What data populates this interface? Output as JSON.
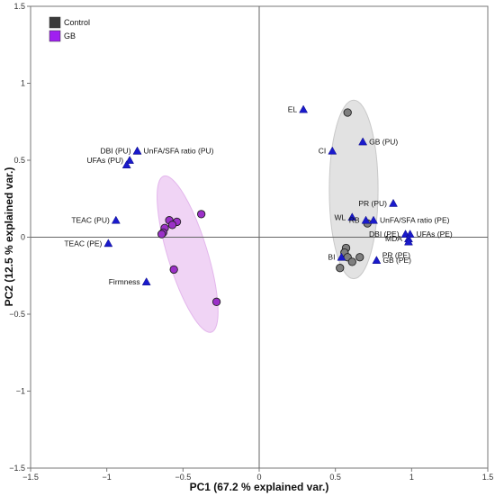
{
  "chart_data": {
    "type": "scatter",
    "title": "",
    "xlabel": "PC1 (67.2 % explained var.)",
    "ylabel": "PC2 (12.5 % explained var.)",
    "xlim": [
      -1.5,
      1.5
    ],
    "ylim": [
      -1.5,
      1.5
    ],
    "x_ticks": [
      -1.5,
      -1,
      -0.5,
      0,
      0.5,
      1,
      1.5
    ],
    "y_ticks": [
      -1.5,
      -1,
      -0.5,
      0,
      0.5,
      1,
      1.5
    ],
    "x_tick_labels": [
      "−1.5",
      "−1",
      "−0.5",
      "0",
      "0.5",
      "1",
      "1.5"
    ],
    "y_tick_labels": [
      "−1.5",
      "−1",
      "−0.5",
      "0",
      "0.5",
      "1",
      "1.5"
    ],
    "grid": false,
    "zero_lines": true,
    "legend_position": "top-left",
    "series": [
      {
        "name": "Control",
        "color": "#7f7f7f",
        "legend_color": "#3a3a3a",
        "points": [
          {
            "x": 0.58,
            "y": 0.81
          },
          {
            "x": 0.71,
            "y": 0.09
          },
          {
            "x": 0.57,
            "y": -0.07
          },
          {
            "x": 0.56,
            "y": -0.1
          },
          {
            "x": 0.58,
            "y": -0.13
          },
          {
            "x": 0.66,
            "y": -0.13
          },
          {
            "x": 0.61,
            "y": -0.16
          },
          {
            "x": 0.53,
            "y": -0.2
          }
        ],
        "ellipse": {
          "cx": 0.62,
          "cy": 0.31,
          "rx": 0.16,
          "ry": 0.58,
          "angle_deg": 0,
          "fill": "#e2e2e2"
        }
      },
      {
        "name": "GB",
        "color": "#9b30c8",
        "legend_color": "#a020f0",
        "points": [
          {
            "x": -0.38,
            "y": 0.15
          },
          {
            "x": -0.59,
            "y": 0.11
          },
          {
            "x": -0.54,
            "y": 0.1
          },
          {
            "x": -0.57,
            "y": 0.08
          },
          {
            "x": -0.62,
            "y": 0.06
          },
          {
            "x": -0.63,
            "y": 0.03
          },
          {
            "x": -0.64,
            "y": 0.02
          },
          {
            "x": -0.56,
            "y": -0.21
          },
          {
            "x": -0.28,
            "y": -0.42
          }
        ],
        "ellipse": {
          "cx": -0.47,
          "cy": -0.11,
          "rx": 0.13,
          "ry": 0.53,
          "angle_deg": -17,
          "fill": "#f0d4f5"
        }
      }
    ],
    "variables": [
      {
        "label": "EL",
        "x": 0.29,
        "y": 0.83,
        "anchor": "end"
      },
      {
        "label": "CI",
        "x": 0.48,
        "y": 0.56,
        "anchor": "end"
      },
      {
        "label": "GB (PU)",
        "x": 0.68,
        "y": 0.62,
        "anchor": "start"
      },
      {
        "label": "DBI (PU)",
        "x": -0.8,
        "y": 0.56,
        "anchor": "end"
      },
      {
        "label": "UnFA/SFA ratio (PU)",
        "x": -0.8,
        "y": 0.56,
        "anchor": "start"
      },
      {
        "label": "UFAs (PU)",
        "x": -0.85,
        "y": 0.5,
        "anchor": "end"
      },
      {
        "label": "UFAs (PU)",
        "x": -0.87,
        "y": 0.47,
        "anchor": "none"
      },
      {
        "label": "PR (PU)",
        "x": 0.88,
        "y": 0.22,
        "anchor": "end"
      },
      {
        "label": "WL",
        "x": 0.61,
        "y": 0.13,
        "anchor": "end"
      },
      {
        "label": "RB",
        "x": 0.7,
        "y": 0.11,
        "anchor": "end"
      },
      {
        "label": "UnFA/SFA ratio (PE)",
        "x": 0.75,
        "y": 0.11,
        "anchor": "start"
      },
      {
        "label": "DBI (PE)",
        "x": 0.96,
        "y": 0.02,
        "anchor": "end"
      },
      {
        "label": "UFAs (PE)",
        "x": 0.99,
        "y": 0.02,
        "anchor": "start"
      },
      {
        "label": "MDA",
        "x": 0.98,
        "y": -0.01,
        "anchor": "end"
      },
      {
        "label": "PR (PE)",
        "x": 0.98,
        "y": -0.03,
        "anchor": "belowend"
      },
      {
        "label": "BI",
        "x": 0.54,
        "y": -0.13,
        "anchor": "end"
      },
      {
        "label": "GB (PE)",
        "x": 0.77,
        "y": -0.15,
        "anchor": "start"
      },
      {
        "label": "TEAC (PU)",
        "x": -0.94,
        "y": 0.11,
        "anchor": "end"
      },
      {
        "label": "TEAC (PE)",
        "x": -0.99,
        "y": -0.04,
        "anchor": "end"
      },
      {
        "label": "Firmness",
        "x": -0.74,
        "y": -0.29,
        "anchor": "end"
      }
    ],
    "variable_color": "#1a1acc"
  }
}
